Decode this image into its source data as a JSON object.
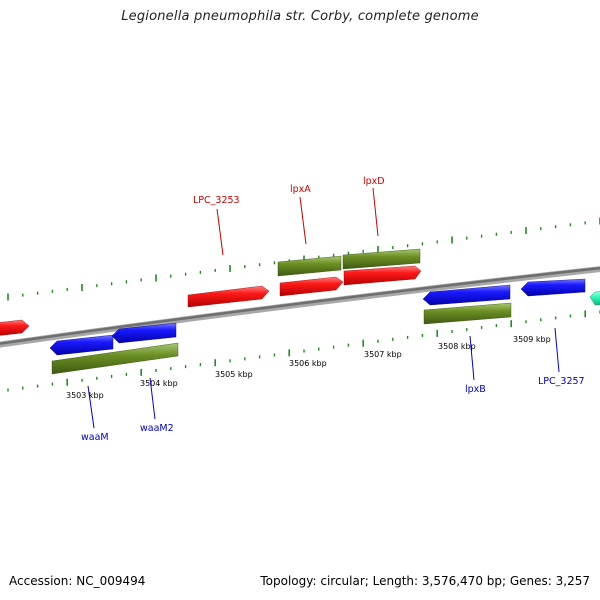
{
  "title": "Legionella pneumophila str. Corby, complete genome",
  "footer": {
    "accession": "Accession: NC_009494",
    "summary": "Topology: circular; Length: 3,576,470 bp; Genes: 3,257"
  },
  "colors": {
    "forward_cds": "#ff0000",
    "reverse_cds": "#0000ff",
    "gene": "#6b8e23",
    "other_feature": "#33ffbb",
    "backbone": "#888888",
    "forward_label": "#cc0000",
    "reverse_label": "#0000cc",
    "tick": "#228b22"
  },
  "scale_labels": [
    "3503 kbp",
    "3504 kbp",
    "3505 kbp",
    "3506 kbp",
    "3507 kbp",
    "3508 kbp",
    "3509 kbp"
  ],
  "forward_gene_labels": [
    "LPC_3253",
    "lpxA",
    "lpxD"
  ],
  "reverse_gene_labels": [
    "waaM",
    "waaM2",
    "lpxB",
    "LPC_3257"
  ]
}
